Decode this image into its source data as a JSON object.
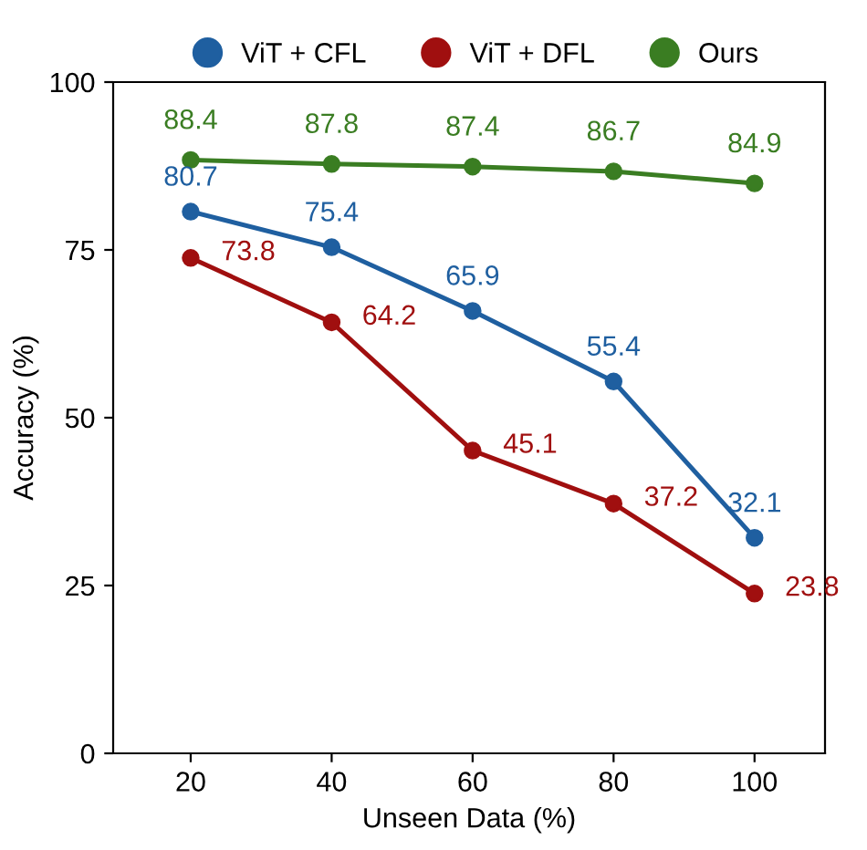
{
  "chart_data": {
    "type": "line",
    "xlabel": "Unseen Data (%)",
    "ylabel": "Accuracy (%)",
    "x": [
      20,
      40,
      60,
      80,
      100
    ],
    "series": [
      {
        "name": "ViT + CFL",
        "color": "#1f5fa0",
        "values": [
          80.7,
          75.4,
          65.9,
          55.4,
          32.1
        ]
      },
      {
        "name": "ViT + DFL",
        "color": "#a00f0f",
        "values": [
          73.8,
          64.2,
          45.1,
          37.2,
          23.8
        ]
      },
      {
        "name": "Ours",
        "color": "#3a7d22",
        "values": [
          88.4,
          87.8,
          87.4,
          86.7,
          84.9
        ]
      }
    ],
    "xlim": [
      9,
      110
    ],
    "ylim": [
      0,
      100
    ],
    "xticks": [
      20,
      40,
      60,
      80,
      100
    ],
    "yticks": [
      0,
      25,
      50,
      75,
      100
    ],
    "marker": "circle",
    "line_style": "solid",
    "grid": false,
    "legend": "top",
    "data_labels": true
  }
}
